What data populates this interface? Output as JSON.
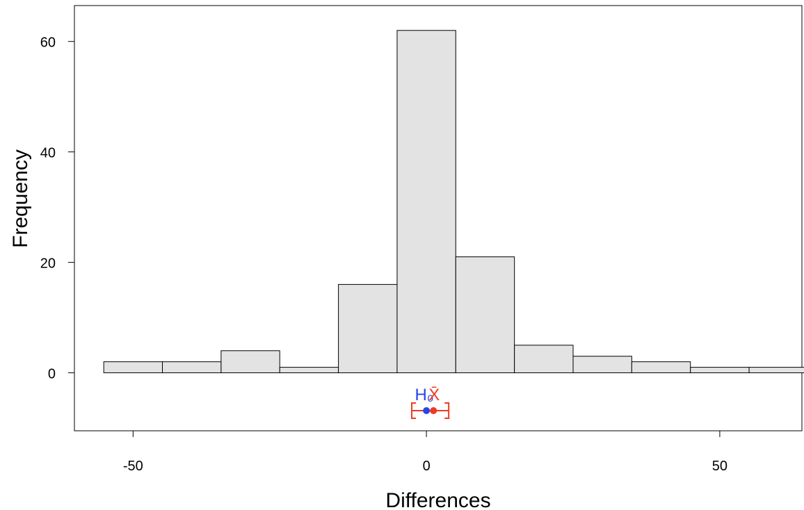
{
  "chart_data": {
    "type": "bar",
    "subtype": "histogram",
    "xlabel": "Differences",
    "ylabel": "Frequency",
    "xlim": [
      -60,
      64
    ],
    "ylim": [
      -10.5,
      66.5
    ],
    "x_ticks": [
      -50,
      0,
      50
    ],
    "x_tick_labels": [
      "-50",
      "0",
      "50"
    ],
    "y_ticks": [
      0,
      20,
      40,
      60
    ],
    "y_tick_labels": [
      "0",
      "20",
      "40",
      "60"
    ],
    "grid": false,
    "legend": "none",
    "bins": [
      {
        "start": -55,
        "end": -45,
        "count": 2
      },
      {
        "start": -45,
        "end": -35,
        "count": 2
      },
      {
        "start": -35,
        "end": -25,
        "count": 4
      },
      {
        "start": -25,
        "end": -15,
        "count": 1
      },
      {
        "start": -15,
        "end": -5,
        "count": 16
      },
      {
        "start": -5,
        "end": 5,
        "count": 62
      },
      {
        "start": 5,
        "end": 15,
        "count": 21
      },
      {
        "start": 15,
        "end": 25,
        "count": 5
      },
      {
        "start": 25,
        "end": 35,
        "count": 3
      },
      {
        "start": 35,
        "end": 45,
        "count": 2
      },
      {
        "start": 45,
        "end": 55,
        "count": 1
      },
      {
        "start": 55,
        "end": 65,
        "count": 1
      }
    ],
    "bar_color": "#e3e3e3",
    "annotations": {
      "h0": {
        "label": "H₀",
        "value": 0,
        "color": "#2a44e8"
      },
      "mean": {
        "label": "X̄",
        "value": 1.2,
        "color": "#ee3a22"
      },
      "ci": {
        "lower": -2.5,
        "upper": 3.8,
        "color": "#ee3a22"
      }
    }
  }
}
